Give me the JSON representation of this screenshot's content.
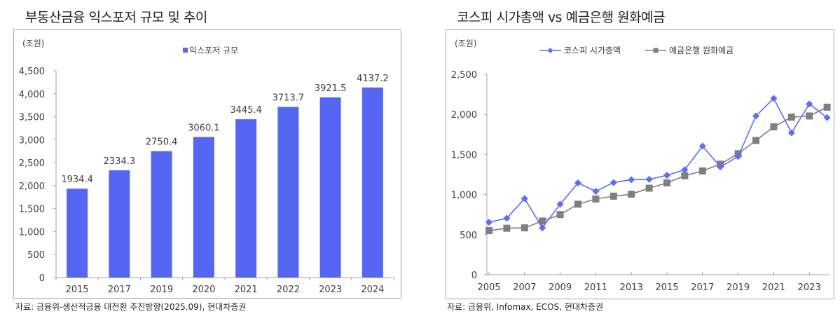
{
  "left_panel": {
    "title": "부동산금융 익스포저 규모 및 추이",
    "unit": "(조원)",
    "source": "자료: 금융위-생산적금융 대전환 추진방향(2025.09), 현대차증권"
  },
  "right_panel": {
    "title": "코스피 시가총액 vs 예금은행 원화예금",
    "unit": "(조원)",
    "source": "자료: 금융위, Infomax, ECOS, 현대차증권"
  },
  "colors": {
    "bar": "#5566f2",
    "kospi": "#5b6ef5",
    "deposit": "#7f7f7f",
    "axis": "#a6a6a6",
    "text": "#404040"
  },
  "chart_data": [
    {
      "type": "bar",
      "title": "부동산금융 익스포저 규모 및 추이",
      "ylabel": "(조원)",
      "xlabel": "",
      "categories": [
        "2015",
        "2017",
        "2019",
        "2020",
        "2021",
        "2022",
        "2023",
        "2024"
      ],
      "series": [
        {
          "name": "익스포저 규모",
          "values": [
            1934.4,
            2334.3,
            2750.4,
            3060.1,
            3445.4,
            3713.7,
            3921.5,
            4137.2
          ]
        }
      ],
      "data_labels": [
        "1934.4",
        "2334.3",
        "2750.4",
        "3060.1",
        "3445.4",
        "3713.7",
        "3921.5",
        "4137.2"
      ],
      "ylim": [
        0,
        4500
      ],
      "yticks": [
        0,
        500,
        1000,
        1500,
        2000,
        2500,
        3000,
        3500,
        4000,
        4500
      ],
      "ytick_labels": [
        "0",
        "500",
        "1,000",
        "1,500",
        "2,000",
        "2,500",
        "3,000",
        "3,500",
        "4,000",
        "4,500"
      ],
      "grid": false,
      "legend_position": "top-center"
    },
    {
      "type": "line",
      "title": "코스피 시가총액 vs 예금은행 원화예금",
      "ylabel": "(조원)",
      "xlabel": "",
      "x": [
        2005,
        2006,
        2007,
        2008,
        2009,
        2010,
        2011,
        2012,
        2013,
        2014,
        2015,
        2016,
        2017,
        2018,
        2019,
        2020,
        2021,
        2022,
        2023,
        2024
      ],
      "xtick_labels": [
        "2005",
        "2007",
        "2009",
        "2011",
        "2013",
        "2015",
        "2017",
        "2019",
        "2021",
        "2023"
      ],
      "series": [
        {
          "name": "코스피 시가총액",
          "marker": "diamond",
          "values": [
            655,
            705,
            950,
            585,
            880,
            1145,
            1040,
            1150,
            1185,
            1190,
            1240,
            1310,
            1605,
            1345,
            1475,
            1980,
            2200,
            1770,
            2130,
            1960
          ]
        },
        {
          "name": "예금은행 원화예금",
          "marker": "square",
          "values": [
            550,
            580,
            585,
            670,
            750,
            880,
            945,
            980,
            1005,
            1080,
            1145,
            1235,
            1295,
            1380,
            1510,
            1675,
            1845,
            1965,
            1980,
            2090
          ]
        }
      ],
      "ylim": [
        0,
        2500
      ],
      "yticks": [
        0,
        500,
        1000,
        1500,
        2000,
        2500
      ],
      "ytick_labels": [
        "0",
        "500",
        "1,000",
        "1,500",
        "2,000",
        "2,500"
      ],
      "grid": false,
      "legend_position": "top-center"
    }
  ]
}
